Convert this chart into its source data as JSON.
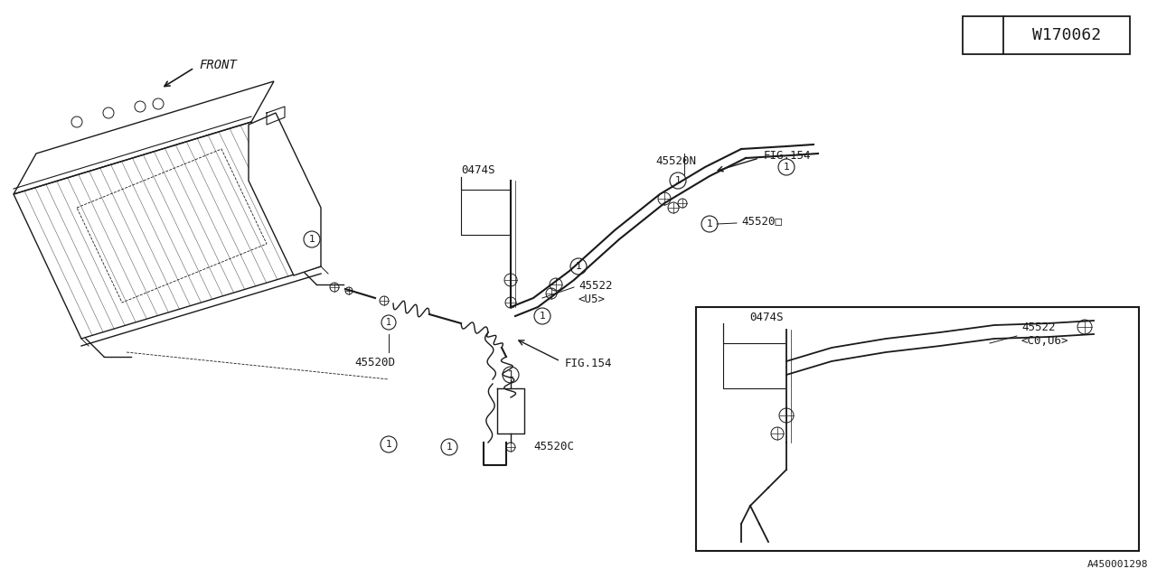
{
  "bg_color": "#ffffff",
  "line_color": "#1a1a1a",
  "part_number_box": "W170062",
  "bottom_right_ref": "A450001298",
  "label_front": "FRONT",
  "label_45520D": "45520D",
  "label_45520N": "45520N",
  "label_45520C": "45520C",
  "label_45520box": "45520□",
  "label_45522_U5": "45522\n<U5>",
  "label_45522_C0U6": "45522\n<C0,U6>",
  "label_0474S": "0474S",
  "label_fig154": "FIG.154",
  "circle_num": "1",
  "font_size": 9,
  "lw": 1.0
}
